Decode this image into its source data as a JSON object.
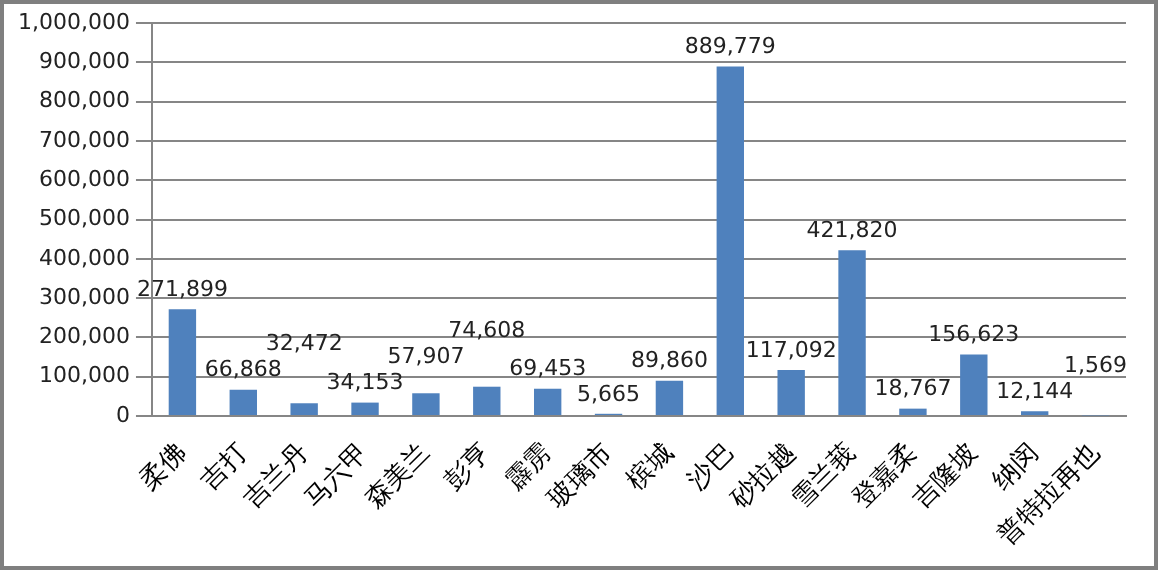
{
  "chart_data": {
    "type": "bar",
    "categories": [
      "柔佛",
      "吉打",
      "吉兰丹",
      "马六甲",
      "森美兰",
      "彭亨",
      "霹雳",
      "玻璃市",
      "槟城",
      "沙巴",
      "砂拉越",
      "雪兰莪",
      "登嘉柔",
      "吉隆坡",
      "纳闵",
      "普特拉再也"
    ],
    "values": [
      271899,
      66868,
      32472,
      34153,
      57907,
      74608,
      69453,
      5665,
      89860,
      889779,
      117092,
      421820,
      18767,
      156623,
      12144,
      1569
    ],
    "value_labels": [
      "271,899",
      "66,868",
      "32,472",
      "34,153",
      "57,907",
      "74,608",
      "69,453",
      "5,665",
      "89,860",
      "889,779",
      "117,092",
      "421,820",
      "18,767",
      "156,623",
      "12,144",
      "1,569"
    ],
    "color": "#4f81bd",
    "ylim": [
      0,
      1000000
    ],
    "yticks": [
      {
        "value": 0,
        "label": "0"
      },
      {
        "value": 100000,
        "label": "100,000"
      },
      {
        "value": 200000,
        "label": "200,000"
      },
      {
        "value": 300000,
        "label": "300,000"
      },
      {
        "value": 400000,
        "label": "400,000"
      },
      {
        "value": 500000,
        "label": "500,000"
      },
      {
        "value": 600000,
        "label": "600,000"
      },
      {
        "value": 700000,
        "label": "700,000"
      },
      {
        "value": 800000,
        "label": "800,000"
      },
      {
        "value": 900000,
        "label": "900,000"
      },
      {
        "value": 1000000,
        "label": "1,000,000"
      }
    ],
    "grid": "y",
    "legend": false
  }
}
